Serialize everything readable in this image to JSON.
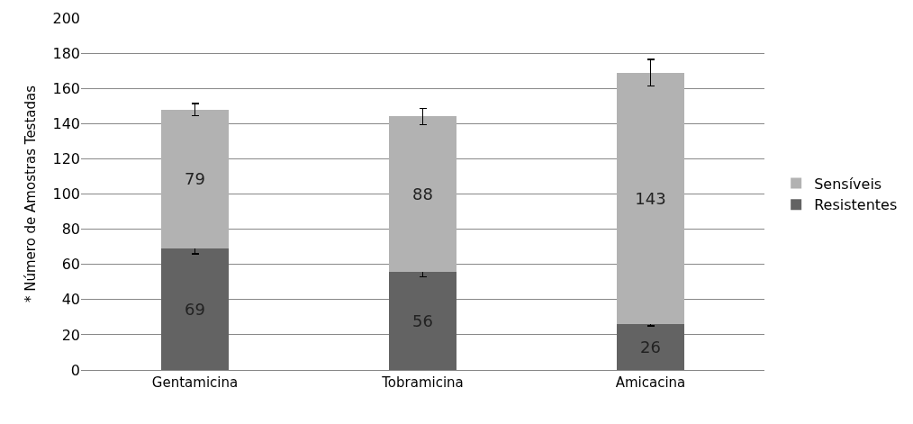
{
  "chart_data": {
    "type": "bar",
    "stacked": true,
    "ylabel": "* Número de Amostras Testadas",
    "categories": [
      "Gentamicina",
      "Tobramicina",
      "Amicacina"
    ],
    "series": [
      {
        "name": "Resistentes",
        "color": "#636363",
        "values": [
          69,
          56,
          26
        ],
        "errors": [
          3,
          3,
          1
        ]
      },
      {
        "name": "Sensíveis",
        "color": "#b2b2b2",
        "values": [
          79,
          88,
          143
        ],
        "errors": [
          3.5,
          4.5,
          7.5
        ]
      }
    ],
    "ylim": [
      0,
      200
    ],
    "yticks": [
      0,
      20,
      40,
      60,
      80,
      100,
      120,
      140,
      160,
      180,
      200
    ],
    "grid": "y",
    "legend": "right",
    "data_labels": true
  }
}
